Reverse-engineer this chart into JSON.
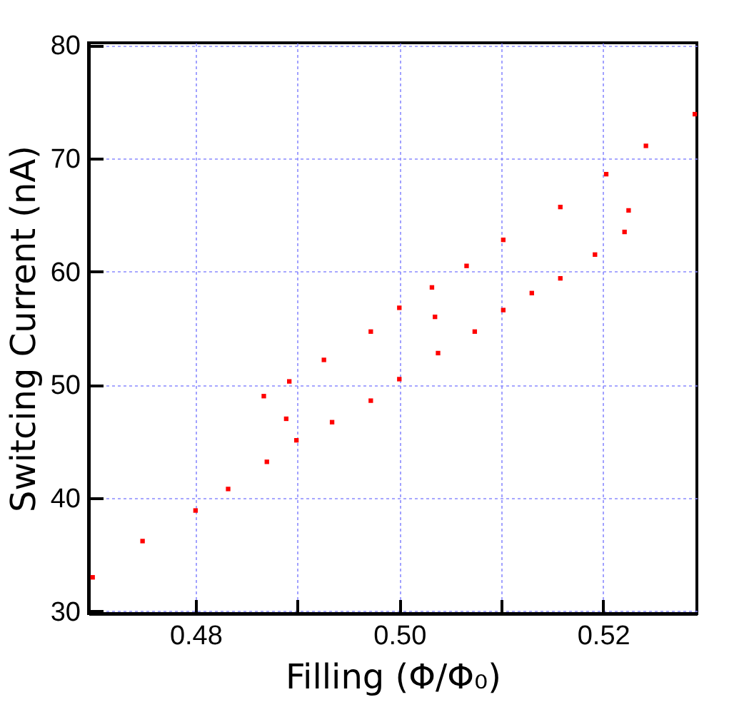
{
  "chart_data": {
    "type": "scatter",
    "xlabel": "Filling (Φ/Φ₀)",
    "ylabel": "Switcing Current (nA)",
    "xlim": [
      0.4695,
      0.5292
    ],
    "ylim": [
      29.8,
      80.2
    ],
    "xticks": [
      {
        "value": 0.48,
        "label": "0.48"
      },
      {
        "value": 0.49,
        "label": null
      },
      {
        "value": 0.5,
        "label": "0.50"
      },
      {
        "value": 0.51,
        "label": null
      },
      {
        "value": 0.52,
        "label": "0.52"
      }
    ],
    "yticks": [
      30,
      40,
      50,
      60,
      70,
      80
    ],
    "grid": true,
    "marker": "square",
    "series": [
      {
        "color": "#ff0000",
        "x": [
          0.4699,
          0.4748,
          0.48,
          0.4832,
          0.487,
          0.4899,
          0.4934,
          0.4972,
          0.5,
          0.5038,
          0.5074,
          0.5102,
          0.513,
          0.5158,
          0.5192,
          0.5221
        ],
        "values": [
          33.0,
          36.2,
          38.9,
          40.8,
          43.2,
          45.1,
          46.7,
          48.6,
          50.5,
          52.8,
          54.7,
          56.6,
          58.1,
          59.4,
          61.5,
          63.5
        ]
      },
      {
        "color": "#ff0000",
        "x": [
          0.4867,
          0.4892,
          0.4926,
          0.4972,
          0.5,
          0.5032,
          0.5066,
          0.5102,
          0.5158,
          0.5203,
          0.5242,
          0.529
        ],
        "values": [
          49.0,
          50.3,
          52.2,
          54.7,
          56.8,
          58.6,
          60.5,
          62.8,
          65.7,
          68.6,
          71.1,
          73.9
        ]
      },
      {
        "color": "#ff0000",
        "x": [
          0.4889,
          0.5225,
          0.5035
        ],
        "values": [
          47.0,
          65.4,
          56.0
        ]
      }
    ]
  }
}
